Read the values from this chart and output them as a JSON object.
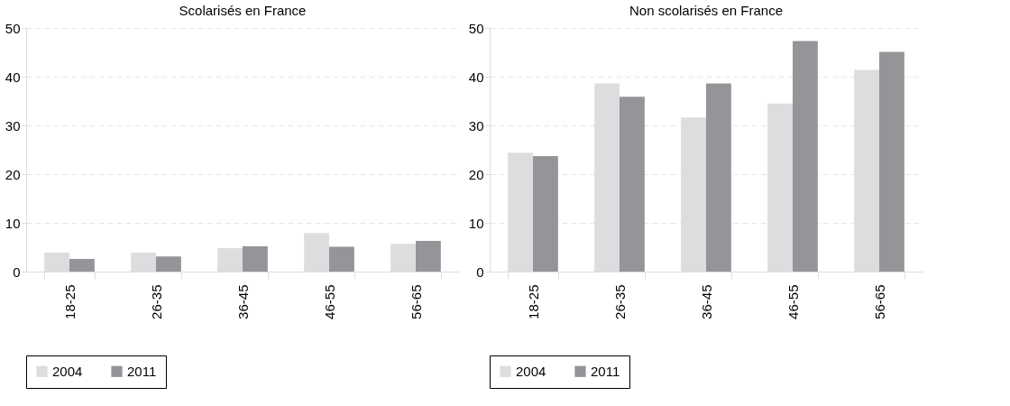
{
  "chart_data": [
    {
      "type": "bar",
      "title": "Scolarisés en France",
      "categories": [
        "18-25",
        "26-35",
        "36-45",
        "46-55",
        "56-65"
      ],
      "series": [
        {
          "name": "2004",
          "color": "#dcdddf",
          "values": [
            3.9,
            3.9,
            4.8,
            7.9,
            5.7
          ]
        },
        {
          "name": "2011",
          "color": "#939598",
          "values": [
            2.6,
            3.1,
            5.2,
            5.1,
            6.3
          ]
        }
      ],
      "ylim": [
        0,
        50
      ],
      "yticks": [
        0,
        10,
        20,
        30,
        40,
        50
      ],
      "grid": "y",
      "legend": "bottom"
    },
    {
      "type": "bar",
      "title": "Non scolarisés en France",
      "categories": [
        "18-25",
        "26-35",
        "36-45",
        "46-55",
        "56-65"
      ],
      "series": [
        {
          "name": "2004",
          "color": "#dcdddf",
          "values": [
            24.4,
            38.6,
            31.6,
            34.5,
            41.4
          ]
        },
        {
          "name": "2011",
          "color": "#939598",
          "values": [
            23.7,
            35.9,
            38.6,
            47.3,
            45.1
          ]
        }
      ],
      "ylim": [
        0,
        50
      ],
      "yticks": [
        0,
        10,
        20,
        30,
        40,
        50
      ],
      "grid": "y",
      "legend": "bottom"
    }
  ]
}
